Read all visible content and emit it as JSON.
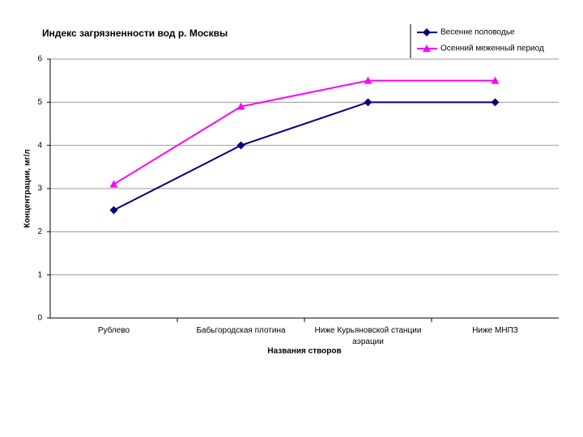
{
  "chart_data": {
    "type": "line",
    "title": "Индекс загрязненности вод р. Москвы",
    "x_label": "Названия створов",
    "y_label": "Концентрации, мг/л",
    "categories": [
      "Рублево",
      "Бабьгородская плотина",
      "Ниже Курьяновской станции аэрации",
      "Ниже МНПЗ"
    ],
    "series": [
      {
        "name": "Весенне половодье",
        "color": "#000080",
        "marker": "diamond",
        "values": [
          2.5,
          4,
          5,
          5
        ]
      },
      {
        "name": "Осенний меженный период",
        "color": "#ff00ff",
        "marker": "triangle",
        "values": [
          3.1,
          4.9,
          5.5,
          5.5
        ]
      }
    ],
    "ylim": [
      0,
      6
    ],
    "yticks": [
      0,
      1,
      2,
      3,
      4,
      5,
      6
    ],
    "grid": true
  }
}
